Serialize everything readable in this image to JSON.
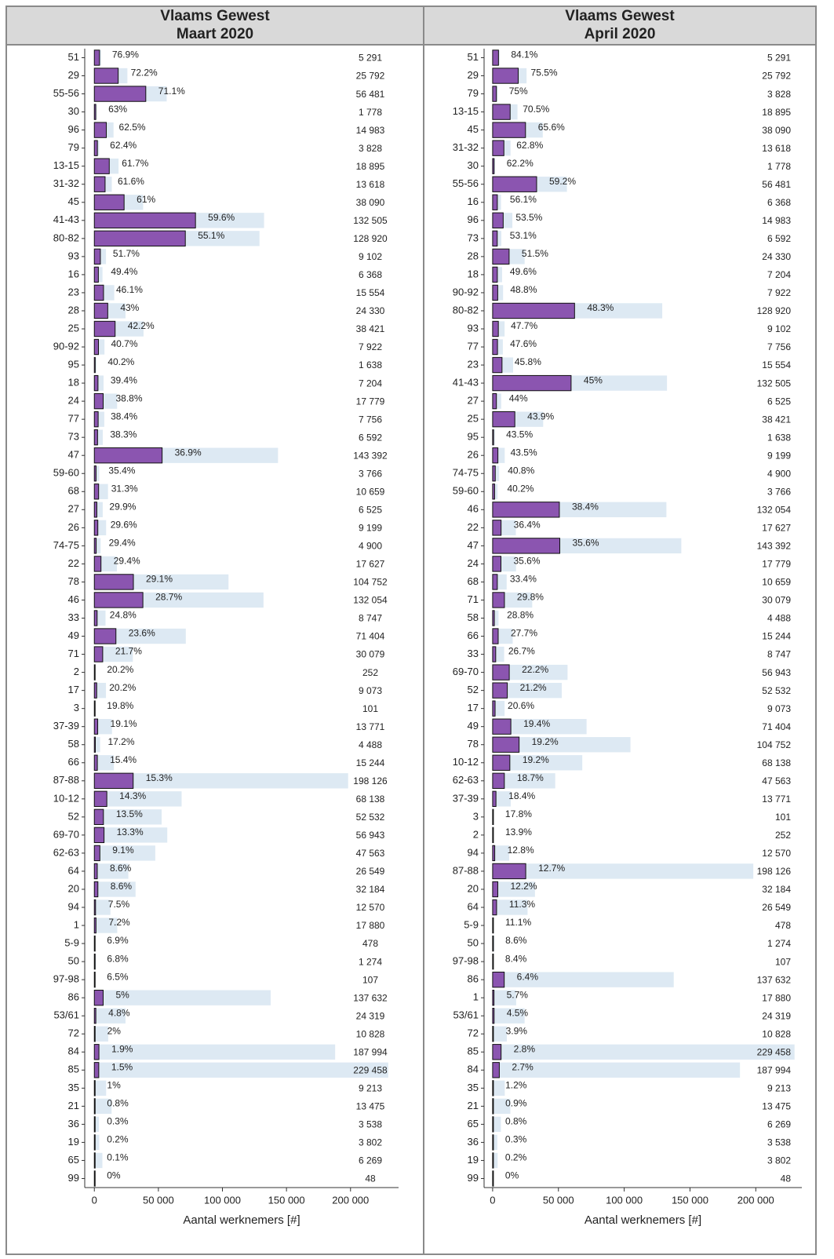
{
  "chart_data": [
    {
      "type": "bar",
      "orientation": "horizontal",
      "title": "Vlaams Gewest",
      "subtitle": "Maart 2020",
      "xlabel": "Aantal werknemers [#]",
      "categories": [
        "51",
        "29",
        "55-56",
        "30",
        "96",
        "79",
        "13-15",
        "31-32",
        "45",
        "41-43",
        "80-82",
        "93",
        "16",
        "23",
        "28",
        "25",
        "90-92",
        "95",
        "18",
        "24",
        "77",
        "73",
        "47",
        "59-60",
        "68",
        "27",
        "26",
        "74-75",
        "22",
        "78",
        "46",
        "33",
        "49",
        "71",
        "2",
        "17",
        "3",
        "37-39",
        "58",
        "66",
        "87-88",
        "10-12",
        "52",
        "69-70",
        "62-63",
        "64",
        "20",
        "94",
        "1",
        "5-9",
        "50",
        "97-98",
        "86",
        "53/61",
        "72",
        "84",
        "85",
        "35",
        "21",
        "36",
        "19",
        "65",
        "99"
      ],
      "series": [
        {
          "color": "#dde9f3",
          "values": [
            5291,
            25792,
            56481,
            1778,
            14983,
            3828,
            18895,
            13618,
            38090,
            132505,
            128920,
            9102,
            6368,
            15554,
            24330,
            38421,
            7922,
            1638,
            7204,
            17779,
            7756,
            6592,
            143392,
            3766,
            10659,
            6525,
            9199,
            4900,
            17627,
            104752,
            132054,
            8747,
            71404,
            30079,
            252,
            9073,
            101,
            13771,
            4488,
            15244,
            198126,
            68138,
            52532,
            56943,
            47563,
            26549,
            32184,
            12570,
            17880,
            478,
            1274,
            107,
            137632,
            24319,
            10828,
            187994,
            229458,
            9213,
            13475,
            3538,
            3802,
            6269,
            48
          ],
          "value_labels": [
            "5 291",
            "25 792",
            "56 481",
            "1 778",
            "14 983",
            "3 828",
            "18 895",
            "13 618",
            "38 090",
            "132 505",
            "128 920",
            "9 102",
            "6 368",
            "15 554",
            "24 330",
            "38 421",
            "7 922",
            "1 638",
            "7 204",
            "17 779",
            "7 756",
            "6 592",
            "143 392",
            "3 766",
            "10 659",
            "6 525",
            "9 199",
            "4 900",
            "17 627",
            "104 752",
            "132 054",
            "8 747",
            "71 404",
            "30 079",
            "252",
            "9 073",
            "101",
            "13 771",
            "4 488",
            "15 244",
            "198 126",
            "68 138",
            "52 532",
            "56 943",
            "47 563",
            "26 549",
            "32 184",
            "12 570",
            "17 880",
            "478",
            "1 274",
            "107",
            "137 632",
            "24 319",
            "10 828",
            "187 994",
            "229 458",
            "9 213",
            "13 475",
            "3 538",
            "3 802",
            "6 269",
            "48"
          ]
        },
        {
          "color": "#8b55b0",
          "values": [
            76.9,
            72.2,
            71.1,
            63,
            62.5,
            62.4,
            61.7,
            61.6,
            61,
            59.6,
            55.1,
            51.7,
            49.4,
            46.1,
            43,
            42.2,
            40.7,
            40.2,
            39.4,
            38.8,
            38.4,
            38.3,
            36.9,
            35.4,
            31.3,
            29.9,
            29.6,
            29.4,
            29.4,
            29.1,
            28.7,
            24.8,
            23.6,
            21.7,
            20.2,
            20.2,
            19.8,
            19.1,
            17.2,
            15.4,
            15.3,
            14.3,
            13.5,
            13.3,
            9.1,
            8.6,
            8.6,
            7.5,
            7.2,
            6.9,
            6.8,
            6.5,
            5,
            4.8,
            2,
            1.9,
            1.5,
            1,
            0.8,
            0.3,
            0.2,
            0.1,
            0
          ],
          "value_labels": [
            "76.9%",
            "72.2%",
            "71.1%",
            "63%",
            "62.5%",
            "62.4%",
            "61.7%",
            "61.6%",
            "61%",
            "59.6%",
            "55.1%",
            "51.7%",
            "49.4%",
            "46.1%",
            "43%",
            "42.2%",
            "40.7%",
            "40.2%",
            "39.4%",
            "38.8%",
            "38.4%",
            "38.3%",
            "36.9%",
            "35.4%",
            "31.3%",
            "29.9%",
            "29.6%",
            "29.4%",
            "29.4%",
            "29.1%",
            "28.7%",
            "24.8%",
            "23.6%",
            "21.7%",
            "20.2%",
            "20.2%",
            "19.8%",
            "19.1%",
            "17.2%",
            "15.4%",
            "15.3%",
            "14.3%",
            "13.5%",
            "13.3%",
            "9.1%",
            "8.6%",
            "8.6%",
            "7.5%",
            "7.2%",
            "6.9%",
            "6.8%",
            "6.5%",
            "5%",
            "4.8%",
            "2%",
            "1.9%",
            "1.5%",
            "1%",
            "0.8%",
            "0.3%",
            "0.2%",
            "0.1%",
            "0%"
          ]
        }
      ],
      "xlim": [
        -7500,
        237500
      ],
      "xticks": [
        0,
        {
          "value": 50000,
          "label": "50 000"
        },
        {
          "value": 100000,
          "label": "100 000"
        },
        {
          "value": 150000,
          "label": "150 000"
        },
        {
          "value": 200000,
          "label": "200 000"
        }
      ]
    },
    {
      "type": "bar",
      "orientation": "horizontal",
      "title": "Vlaams Gewest",
      "subtitle": "April 2020",
      "xlabel": "Aantal werknemers [#]",
      "categories": [
        "51",
        "29",
        "79",
        "13-15",
        "45",
        "31-32",
        "30",
        "55-56",
        "16",
        "96",
        "73",
        "28",
        "18",
        "90-92",
        "80-82",
        "93",
        "77",
        "23",
        "41-43",
        "27",
        "25",
        "95",
        "26",
        "74-75",
        "59-60",
        "46",
        "22",
        "47",
        "24",
        "68",
        "71",
        "58",
        "66",
        "33",
        "69-70",
        "52",
        "17",
        "49",
        "78",
        "10-12",
        "62-63",
        "37-39",
        "3",
        "2",
        "94",
        "87-88",
        "20",
        "64",
        "5-9",
        "50",
        "97-98",
        "86",
        "1",
        "53/61",
        "72",
        "85",
        "84",
        "35",
        "21",
        "65",
        "36",
        "19",
        "99"
      ],
      "series": [
        {
          "color": "#dde9f3",
          "values": [
            5291,
            25792,
            3828,
            18895,
            38090,
            13618,
            1778,
            56481,
            6368,
            14983,
            6592,
            24330,
            7204,
            7922,
            128920,
            9102,
            7756,
            15554,
            132505,
            6525,
            38421,
            1638,
            9199,
            4900,
            3766,
            132054,
            17627,
            143392,
            17779,
            10659,
            30079,
            4488,
            15244,
            8747,
            56943,
            52532,
            9073,
            71404,
            104752,
            68138,
            47563,
            13771,
            101,
            252,
            12570,
            198126,
            32184,
            26549,
            478,
            1274,
            107,
            137632,
            17880,
            24319,
            10828,
            229458,
            187994,
            9213,
            13475,
            6269,
            3538,
            3802,
            48
          ],
          "value_labels": [
            "5 291",
            "25 792",
            "3 828",
            "18 895",
            "38 090",
            "13 618",
            "1 778",
            "56 481",
            "6 368",
            "14 983",
            "6 592",
            "24 330",
            "7 204",
            "7 922",
            "128 920",
            "9 102",
            "7 756",
            "15 554",
            "132 505",
            "6 525",
            "38 421",
            "1 638",
            "9 199",
            "4 900",
            "3 766",
            "132 054",
            "17 627",
            "143 392",
            "17 779",
            "10 659",
            "30 079",
            "4 488",
            "15 244",
            "8 747",
            "56 943",
            "52 532",
            "9 073",
            "71 404",
            "104 752",
            "68 138",
            "47 563",
            "13 771",
            "101",
            "252",
            "12 570",
            "198 126",
            "32 184",
            "26 549",
            "478",
            "1 274",
            "107",
            "137 632",
            "17 880",
            "24 319",
            "10 828",
            "229 458",
            "187 994",
            "9 213",
            "13 475",
            "6 269",
            "3 538",
            "3 802",
            "48"
          ]
        },
        {
          "color": "#8b55b0",
          "values": [
            84.1,
            75.5,
            75,
            70.5,
            65.6,
            62.8,
            62.2,
            59.2,
            56.1,
            53.5,
            53.1,
            51.5,
            49.6,
            48.8,
            48.3,
            47.7,
            47.6,
            45.8,
            45,
            44,
            43.9,
            43.5,
            43.5,
            40.8,
            40.2,
            38.4,
            36.4,
            35.6,
            35.6,
            33.4,
            29.8,
            28.8,
            27.7,
            26.7,
            22.2,
            21.2,
            20.6,
            19.4,
            19.2,
            19.2,
            18.7,
            18.4,
            17.8,
            13.9,
            12.8,
            12.7,
            12.2,
            11.3,
            11.1,
            8.6,
            8.4,
            6.4,
            5.7,
            4.5,
            3.9,
            2.8,
            2.7,
            1.2,
            0.9,
            0.8,
            0.3,
            0.2,
            0
          ],
          "value_labels": [
            "84.1%",
            "75.5%",
            "75%",
            "70.5%",
            "65.6%",
            "62.8%",
            "62.2%",
            "59.2%",
            "56.1%",
            "53.5%",
            "53.1%",
            "51.5%",
            "49.6%",
            "48.8%",
            "48.3%",
            "47.7%",
            "47.6%",
            "45.8%",
            "45%",
            "44%",
            "43.9%",
            "43.5%",
            "43.5%",
            "40.8%",
            "40.2%",
            "38.4%",
            "36.4%",
            "35.6%",
            "35.6%",
            "33.4%",
            "29.8%",
            "28.8%",
            "27.7%",
            "26.7%",
            "22.2%",
            "21.2%",
            "20.6%",
            "19.4%",
            "19.2%",
            "19.2%",
            "18.7%",
            "18.4%",
            "17.8%",
            "13.9%",
            "12.8%",
            "12.7%",
            "12.2%",
            "11.3%",
            "11.1%",
            "8.6%",
            "8.4%",
            "6.4%",
            "5.7%",
            "4.5%",
            "3.9%",
            "2.8%",
            "2.7%",
            "1.2%",
            "0.9%",
            "0.8%",
            "0.3%",
            "0.2%",
            "0%"
          ]
        }
      ],
      "xlim": [
        -6500,
        235000
      ],
      "xticks": [
        0,
        {
          "value": 50000,
          "label": "50 000"
        },
        {
          "value": 100000,
          "label": "100 000"
        },
        {
          "value": 150000,
          "label": "150 000"
        },
        {
          "value": 200000,
          "label": "200 000"
        }
      ]
    }
  ]
}
